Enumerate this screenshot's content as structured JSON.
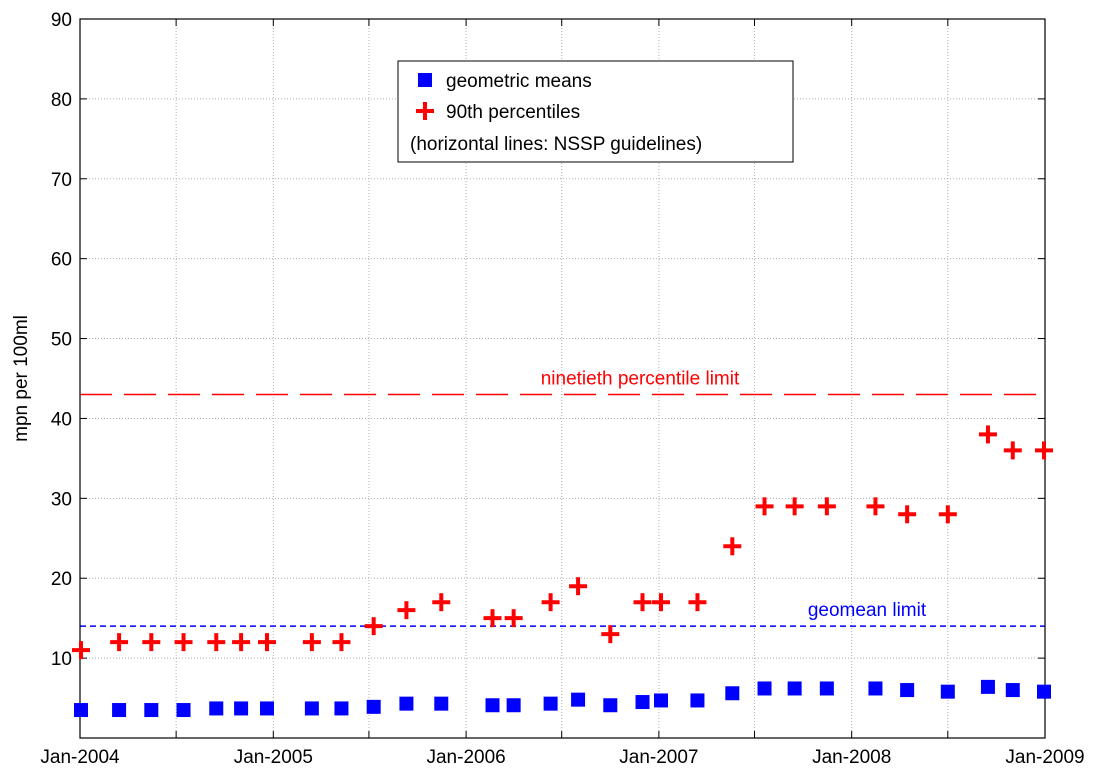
{
  "chart_data": {
    "type": "scatter",
    "title": "",
    "xlabel": "",
    "ylabel": "mpn per 100ml",
    "xlim": [
      "2004-01-01",
      "2009-01-01"
    ],
    "ylim": [
      0,
      90
    ],
    "grid": true,
    "x_ticks": [
      {
        "date": "2004-01-01",
        "label": "Jan-2004"
      },
      {
        "date": "2004-07-01",
        "label": ""
      },
      {
        "date": "2005-01-01",
        "label": "Jan-2005"
      },
      {
        "date": "2005-07-01",
        "label": ""
      },
      {
        "date": "2006-01-01",
        "label": "Jan-2006"
      },
      {
        "date": "2006-07-01",
        "label": ""
      },
      {
        "date": "2007-01-01",
        "label": "Jan-2007"
      },
      {
        "date": "2007-07-01",
        "label": ""
      },
      {
        "date": "2008-01-01",
        "label": "Jan-2008"
      },
      {
        "date": "2008-07-01",
        "label": ""
      },
      {
        "date": "2009-01-01",
        "label": "Jan-2009"
      }
    ],
    "y_ticks": [
      10,
      20,
      30,
      40,
      50,
      60,
      70,
      80,
      90
    ],
    "legend": {
      "placement": "top-center",
      "entries": [
        "geometric means",
        "90th percentiles",
        "(horizontal lines: NSSP guidelines)"
      ]
    },
    "series": [
      {
        "name": "geometric means",
        "marker": "square",
        "color": "#0000ff",
        "points": [
          [
            "2004-01-01",
            3.5
          ],
          [
            "2004-03-15",
            3.5
          ],
          [
            "2004-05-15",
            3.5
          ],
          [
            "2004-07-15",
            3.5
          ],
          [
            "2004-09-15",
            3.7
          ],
          [
            "2004-11-01",
            3.7
          ],
          [
            "2004-12-20",
            3.7
          ],
          [
            "2005-03-15",
            3.7
          ],
          [
            "2005-05-10",
            3.7
          ],
          [
            "2005-07-10",
            3.9
          ],
          [
            "2005-09-10",
            4.3
          ],
          [
            "2005-11-15",
            4.3
          ],
          [
            "2006-02-20",
            4.1
          ],
          [
            "2006-04-01",
            4.1
          ],
          [
            "2006-06-10",
            4.3
          ],
          [
            "2006-08-01",
            4.8
          ],
          [
            "2006-10-01",
            4.1
          ],
          [
            "2006-12-01",
            4.5
          ],
          [
            "2007-01-05",
            4.7
          ],
          [
            "2007-03-15",
            4.7
          ],
          [
            "2007-05-20",
            5.6
          ],
          [
            "2007-07-20",
            6.2
          ],
          [
            "2007-09-15",
            6.2
          ],
          [
            "2007-11-15",
            6.2
          ],
          [
            "2008-02-15",
            6.2
          ],
          [
            "2008-04-15",
            6.0
          ],
          [
            "2008-07-01",
            5.8
          ],
          [
            "2008-09-15",
            6.4
          ],
          [
            "2008-11-01",
            6.0
          ],
          [
            "2009-01-01",
            5.8
          ]
        ]
      },
      {
        "name": "90th percentiles",
        "marker": "plus",
        "color": "#ff0000",
        "points": [
          [
            "2004-01-01",
            11
          ],
          [
            "2004-03-15",
            12
          ],
          [
            "2004-05-15",
            12
          ],
          [
            "2004-07-15",
            12
          ],
          [
            "2004-09-15",
            12
          ],
          [
            "2004-11-01",
            12
          ],
          [
            "2004-12-20",
            12
          ],
          [
            "2005-03-15",
            12
          ],
          [
            "2005-05-10",
            12
          ],
          [
            "2005-07-10",
            14
          ],
          [
            "2005-09-10",
            16
          ],
          [
            "2005-11-15",
            17
          ],
          [
            "2006-02-20",
            15
          ],
          [
            "2006-04-01",
            15
          ],
          [
            "2006-06-10",
            17
          ],
          [
            "2006-08-01",
            19
          ],
          [
            "2006-10-01",
            13
          ],
          [
            "2006-12-01",
            17
          ],
          [
            "2007-01-05",
            17
          ],
          [
            "2007-03-15",
            17
          ],
          [
            "2007-05-20",
            24
          ],
          [
            "2007-07-20",
            29
          ],
          [
            "2007-09-15",
            29
          ],
          [
            "2007-11-15",
            29
          ],
          [
            "2008-02-15",
            29
          ],
          [
            "2008-04-15",
            28
          ],
          [
            "2008-07-01",
            28
          ],
          [
            "2008-09-15",
            38
          ],
          [
            "2008-11-01",
            36
          ],
          [
            "2009-01-01",
            36
          ]
        ]
      }
    ],
    "reference_lines": [
      {
        "value": 43,
        "label": "ninetieth percentile limit",
        "color": "#ff0000",
        "style": "long-dash"
      },
      {
        "value": 14,
        "label": "geomean limit",
        "color": "#0000ff",
        "style": "short-dash"
      }
    ]
  }
}
